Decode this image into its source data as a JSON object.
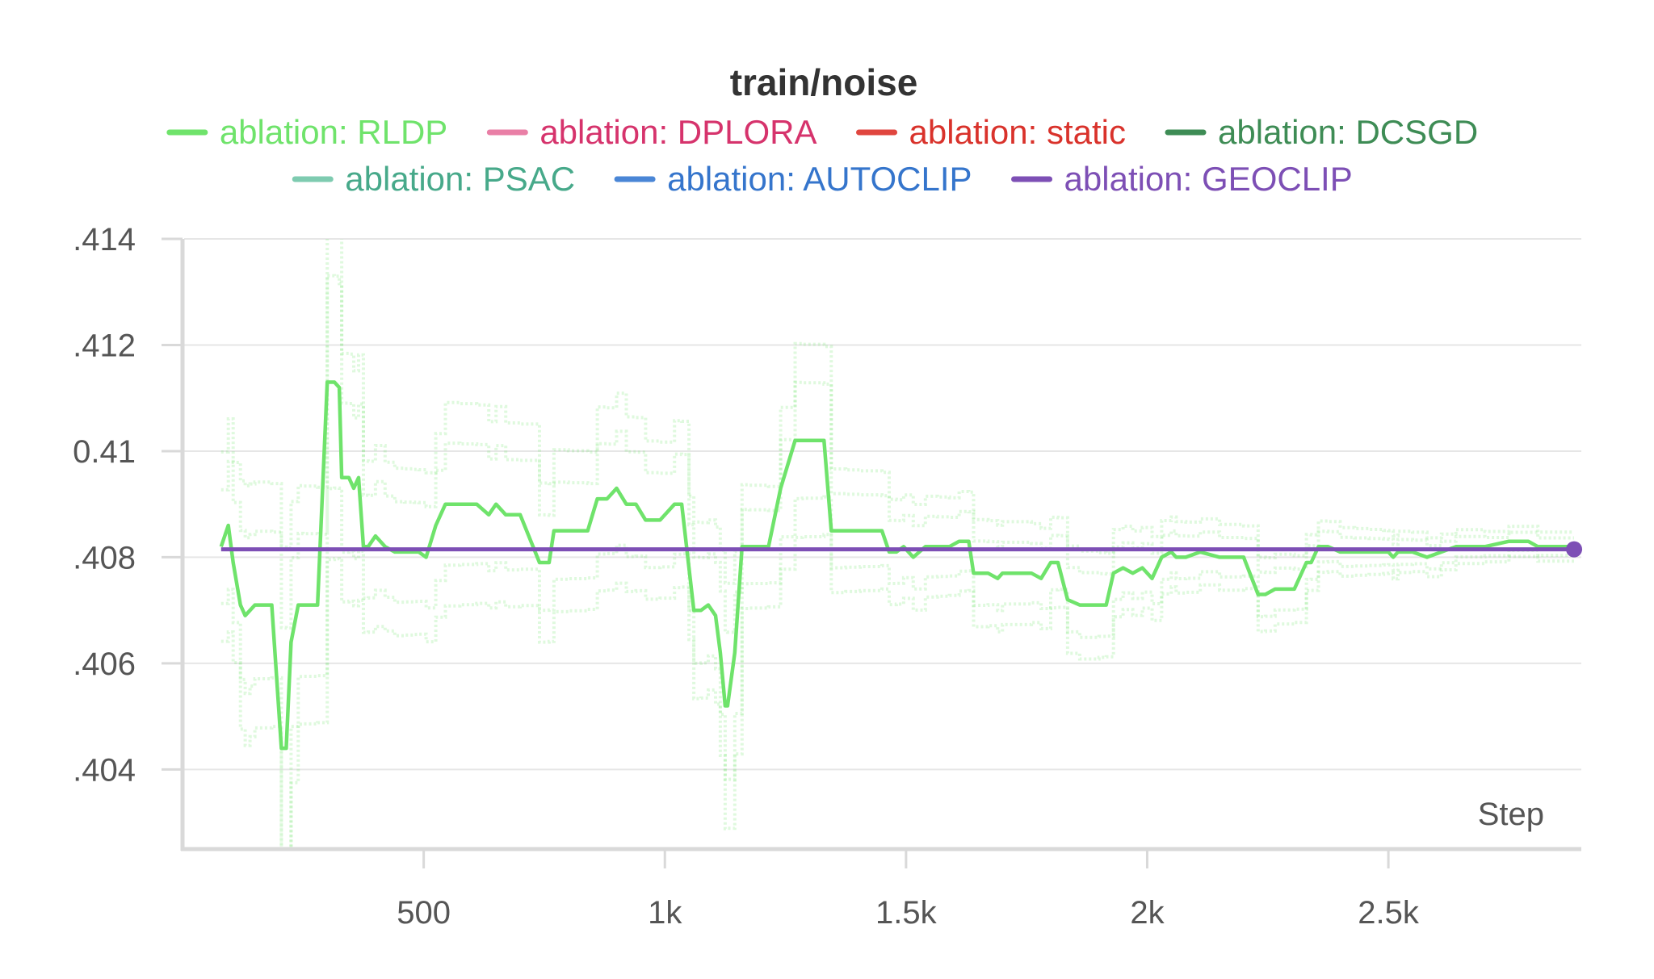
{
  "chart_data": {
    "type": "line",
    "title": "train/noise",
    "xlabel": "Step",
    "ylabel": "",
    "xlim": [
      0,
      2900
    ],
    "ylim": [
      0.4025,
      0.414
    ],
    "x_ticks": [
      500,
      1000,
      1500,
      2000,
      2500
    ],
    "x_tick_labels": [
      "500",
      "1k",
      "1.5k",
      "2k",
      "2.5k"
    ],
    "y_ticks": [
      0.404,
      0.406,
      0.408,
      0.41,
      0.412,
      0.414
    ],
    "y_tick_labels": [
      ".404",
      ".406",
      ".408",
      "0.41",
      ".412",
      ".414"
    ],
    "grid": true,
    "legend_position": "top-center",
    "legend": [
      {
        "label": "ablation: RLDP",
        "color": "#6fe36b",
        "text_color": "#6fe36b"
      },
      {
        "label": "ablation: DPLORA",
        "color": "#e97fa6",
        "text_color": "#d6336c"
      },
      {
        "label": "ablation: static",
        "color": "#e0463f",
        "text_color": "#d9322b"
      },
      {
        "label": "ablation: DCSGD",
        "color": "#3e8c55",
        "text_color": "#3e8c55"
      },
      {
        "label": "ablation: PSAC",
        "color": "#7ecbb0",
        "text_color": "#47a98a"
      },
      {
        "label": "ablation: AUTOCLIP",
        "color": "#4a86d6",
        "text_color": "#3575cc"
      },
      {
        "label": "ablation: GEOCLIP",
        "color": "#7d4fb5",
        "text_color": "#7d4fb5"
      }
    ],
    "series": [
      {
        "name": "ablation: RLDP",
        "color": "#6fe36b",
        "x": [
          80,
          95,
          105,
          120,
          130,
          140,
          150,
          185,
          205,
          215,
          225,
          240,
          250,
          280,
          300,
          315,
          325,
          330,
          345,
          355,
          365,
          375,
          385,
          400,
          420,
          440,
          460,
          480,
          490,
          505,
          525,
          545,
          575,
          610,
          635,
          650,
          670,
          700,
          740,
          760,
          770,
          800,
          840,
          860,
          880,
          900,
          920,
          940,
          960,
          990,
          1020,
          1035,
          1050,
          1060,
          1075,
          1090,
          1105,
          1115,
          1125,
          1130,
          1145,
          1160,
          1175,
          1215,
          1240,
          1270,
          1285,
          1330,
          1345,
          1375,
          1405,
          1450,
          1465,
          1480,
          1495,
          1515,
          1540,
          1565,
          1590,
          1610,
          1630,
          1640,
          1670,
          1690,
          1700,
          1760,
          1780,
          1800,
          1815,
          1835,
          1860,
          1900,
          1915,
          1930,
          1950,
          1970,
          1990,
          2010,
          2030,
          2050,
          2060,
          2080,
          2110,
          2150,
          2200,
          2230,
          2245,
          2265,
          2305,
          2330,
          2340,
          2355,
          2375,
          2400,
          2430,
          2460,
          2490,
          2500,
          2510,
          2520,
          2550,
          2580,
          2610,
          2640,
          2700,
          2750,
          2790,
          2810,
          2840,
          2885
        ],
        "y": [
          0.4082,
          0.4086,
          0.4079,
          0.4071,
          0.4069,
          0.407,
          0.4071,
          0.4071,
          0.4044,
          0.4044,
          0.4064,
          0.4071,
          0.4071,
          0.4071,
          0.4113,
          0.4113,
          0.4112,
          0.4095,
          0.4095,
          0.4093,
          0.4095,
          0.4082,
          0.4082,
          0.4084,
          0.4082,
          0.4081,
          0.4081,
          0.4081,
          0.4081,
          0.408,
          0.4086,
          0.409,
          0.409,
          0.409,
          0.4088,
          0.409,
          0.4088,
          0.4088,
          0.4079,
          0.4079,
          0.4085,
          0.4085,
          0.4085,
          0.4091,
          0.4091,
          0.4093,
          0.409,
          0.409,
          0.4087,
          0.4087,
          0.409,
          0.409,
          0.4078,
          0.407,
          0.407,
          0.4071,
          0.4069,
          0.4062,
          0.4052,
          0.4052,
          0.4062,
          0.4082,
          0.4082,
          0.4082,
          0.4093,
          0.4102,
          0.4102,
          0.4102,
          0.4085,
          0.4085,
          0.4085,
          0.4085,
          0.4081,
          0.4081,
          0.4082,
          0.408,
          0.4082,
          0.4082,
          0.4082,
          0.4083,
          0.4083,
          0.4077,
          0.4077,
          0.4076,
          0.4077,
          0.4077,
          0.4076,
          0.4079,
          0.4079,
          0.4072,
          0.4071,
          0.4071,
          0.4071,
          0.4077,
          0.4078,
          0.4077,
          0.4078,
          0.4076,
          0.408,
          0.4081,
          0.408,
          0.408,
          0.4081,
          0.408,
          0.408,
          0.4073,
          0.4073,
          0.4074,
          0.4074,
          0.4079,
          0.4079,
          0.4082,
          0.4082,
          0.4081,
          0.4081,
          0.4081,
          0.4081,
          0.4081,
          0.408,
          0.4081,
          0.4081,
          0.408,
          0.4081,
          0.4082,
          0.4082,
          0.4083,
          0.4083,
          0.4082,
          0.4082,
          0.4082
        ]
      },
      {
        "name": "ablation: GEOCLIP",
        "color": "#7d4fb5",
        "x": [
          80,
          2885
        ],
        "y": [
          0.40815,
          0.40815
        ]
      }
    ]
  }
}
